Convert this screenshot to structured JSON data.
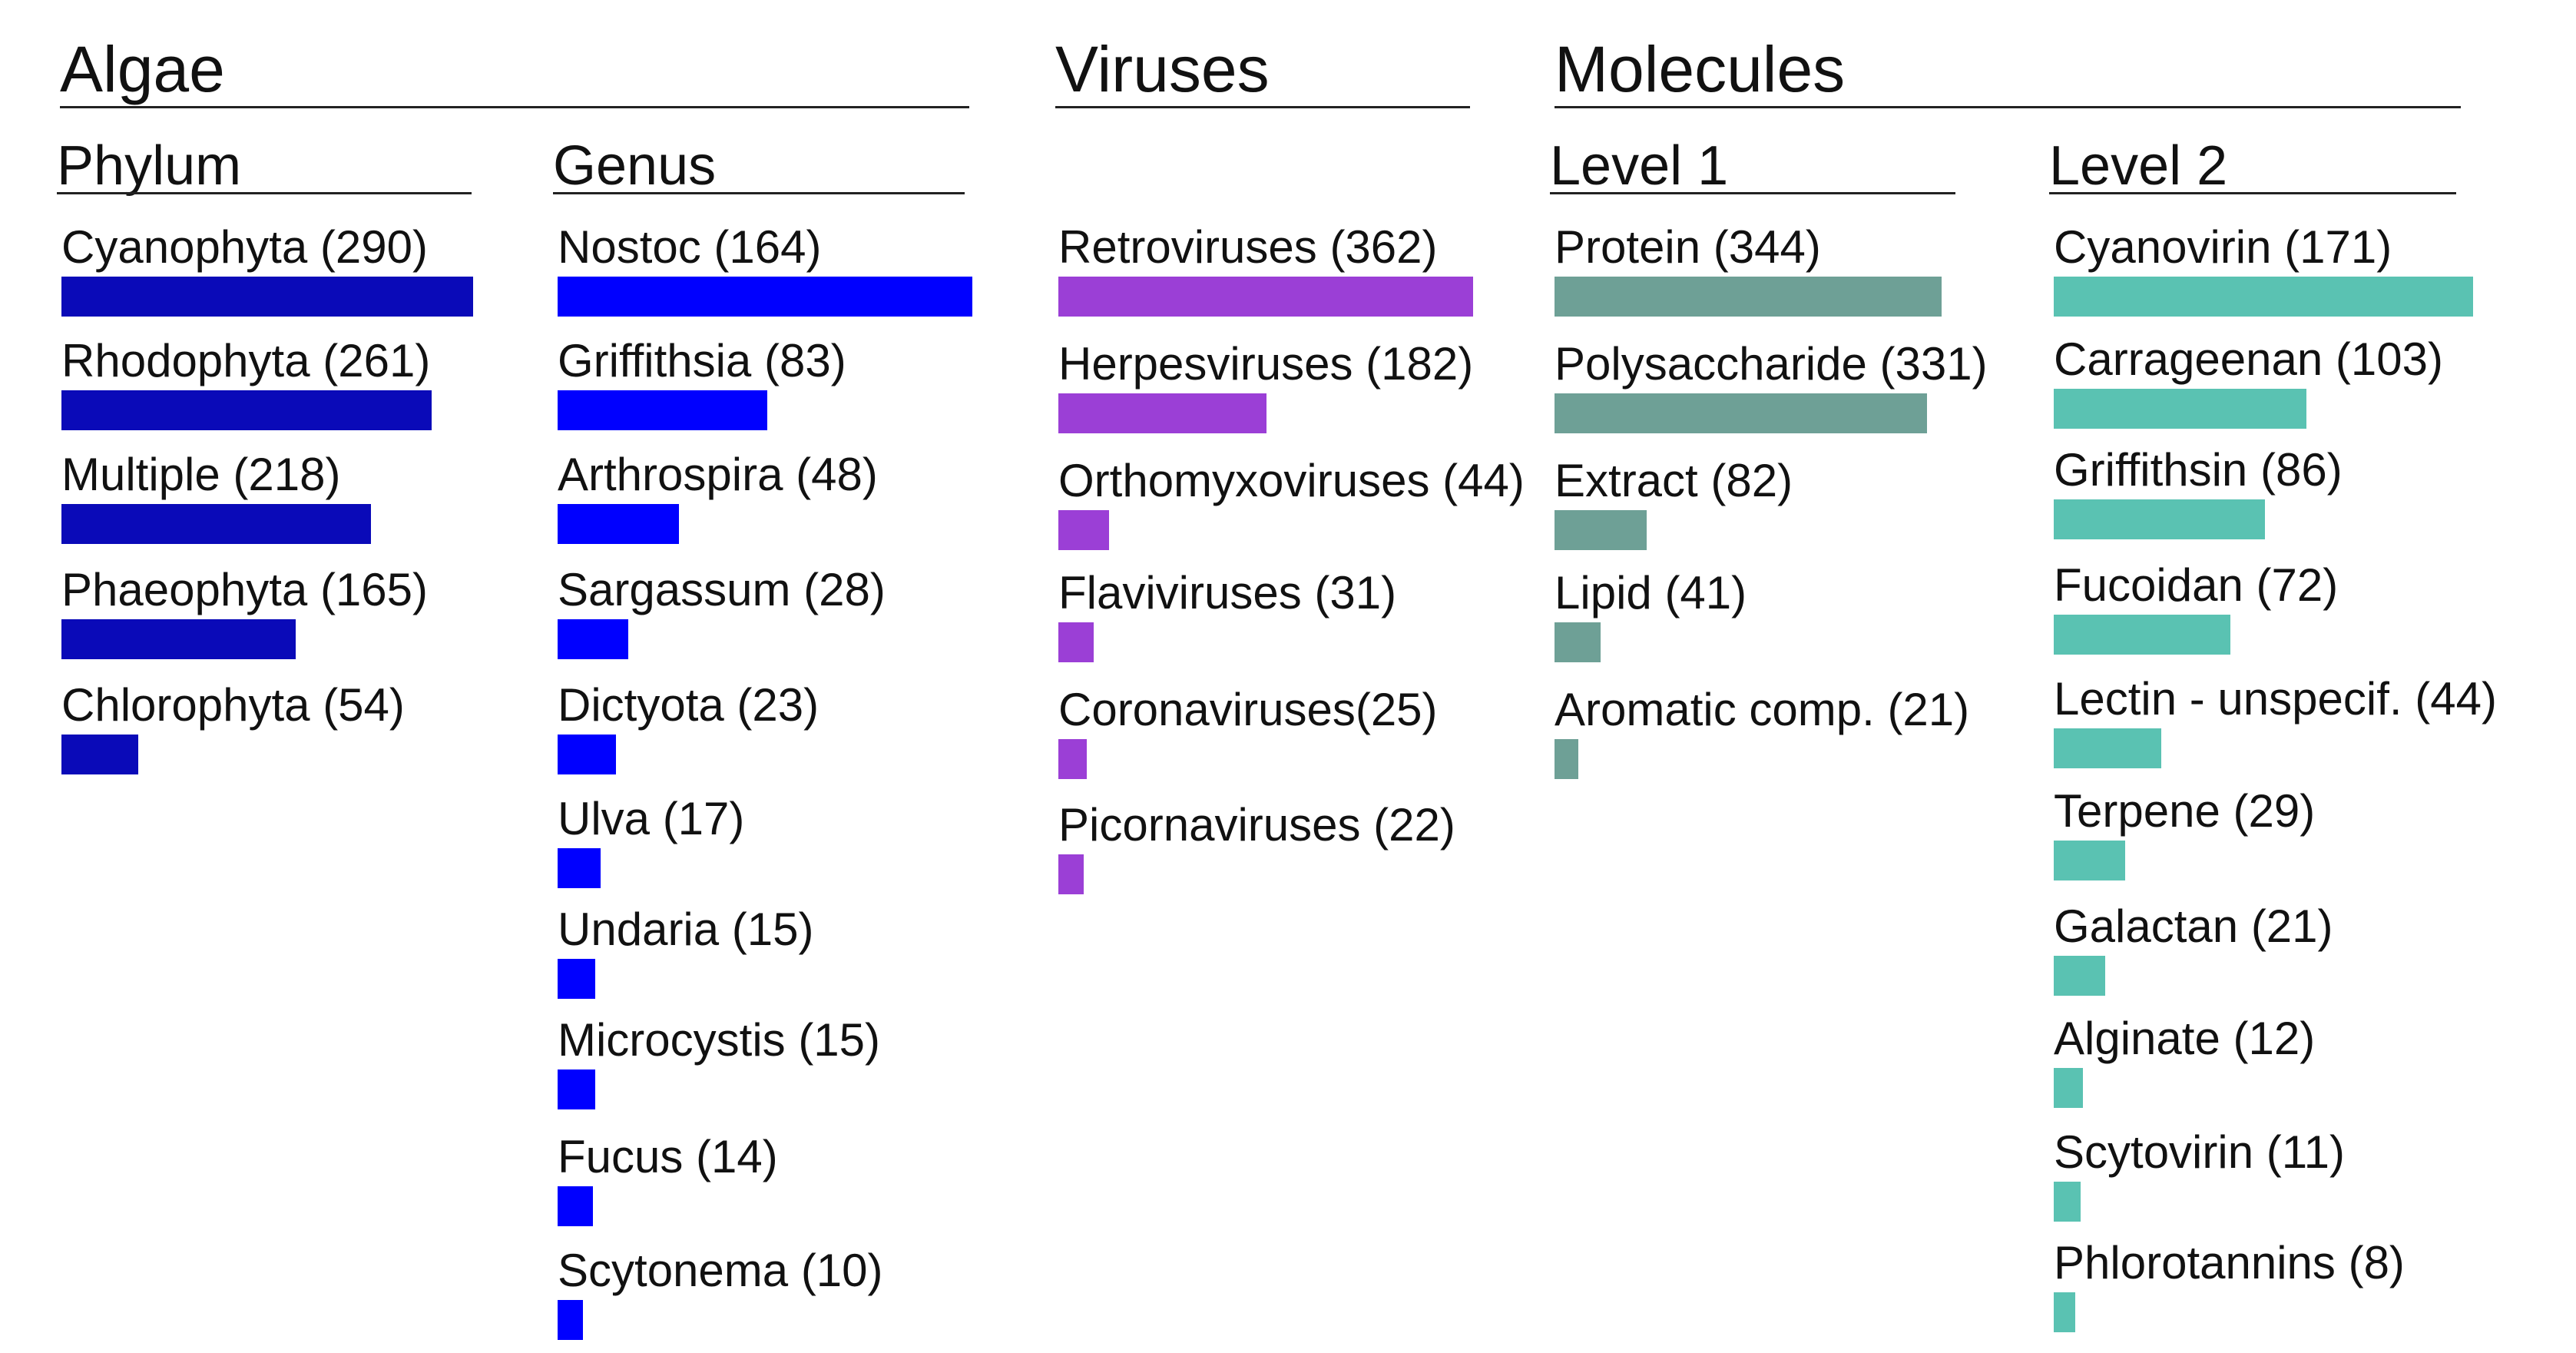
{
  "sections": {
    "algae": "Algae",
    "viruses": "Viruses",
    "molecules": "Molecules"
  },
  "colors": {
    "phylum": "#0a0ab8",
    "genus": "#0000ff",
    "viruses": "#9b3fd6",
    "level1": "#6ea096",
    "level2": "#5ac2b2"
  },
  "chart_data": [
    {
      "type": "bar",
      "orientation": "horizontal",
      "section": "Algae",
      "title": "Phylum",
      "color": "#0a0ab8",
      "categories": [
        "Cyanophyta",
        "Rhodophyta",
        "Multiple",
        "Phaeophyta",
        "Chlorophyta"
      ],
      "values": [
        290,
        261,
        218,
        165,
        54
      ],
      "labels": [
        "Cyanophyta (290)",
        "Rhodophyta (261)",
        "Multiple (218)",
        "Phaeophyta (165)",
        "Chlorophyta (54)"
      ]
    },
    {
      "type": "bar",
      "orientation": "horizontal",
      "section": "Algae",
      "title": "Genus",
      "color": "#0000ff",
      "categories": [
        "Nostoc",
        "Griffithsia",
        "Arthrospira",
        "Sargassum",
        "Dictyota",
        "Ulva",
        "Undaria",
        "Microcystis",
        "Fucus",
        "Scytonema"
      ],
      "values": [
        164,
        83,
        48,
        28,
        23,
        17,
        15,
        15,
        14,
        10
      ],
      "labels": [
        "Nostoc (164)",
        "Griffithsia (83)",
        "Arthrospira (48)",
        "Sargassum (28)",
        "Dictyota (23)",
        "Ulva (17)",
        "Undaria (15)",
        "Microcystis (15)",
        "Fucus (14)",
        "Scytonema (10)"
      ]
    },
    {
      "type": "bar",
      "orientation": "horizontal",
      "section": "Viruses",
      "title": "",
      "color": "#9b3fd6",
      "categories": [
        "Retroviruses",
        "Herpesviruses",
        "Orthomyxoviruses",
        "Flaviviruses",
        "Coronaviruses",
        "Picornaviruses"
      ],
      "values": [
        362,
        182,
        44,
        31,
        25,
        22
      ],
      "labels": [
        "Retroviruses (362)",
        "Herpesviruses (182)",
        "Orthomyxoviruses (44)",
        "Flaviviruses (31)",
        "Coronaviruses(25)",
        "Picornaviruses (22)"
      ]
    },
    {
      "type": "bar",
      "orientation": "horizontal",
      "section": "Molecules",
      "title": "Level 1",
      "color": "#6ea096",
      "categories": [
        "Protein",
        "Polysaccharide",
        "Extract",
        "Lipid",
        "Aromatic comp."
      ],
      "values": [
        344,
        331,
        82,
        41,
        21
      ],
      "labels": [
        "Protein (344)",
        "Polysaccharide (331)",
        "Extract (82)",
        "Lipid (41)",
        "Aromatic comp. (21)"
      ]
    },
    {
      "type": "bar",
      "orientation": "horizontal",
      "section": "Molecules",
      "title": "Level 2",
      "color": "#5ac2b2",
      "categories": [
        "Cyanovirin",
        "Carrageenan",
        "Griffithsin",
        "Fucoidan",
        "Lectin - unspecif.",
        "Terpene",
        "Galactan",
        "Alginate",
        "Scytovirin",
        "Phlorotannins"
      ],
      "values": [
        171,
        103,
        86,
        72,
        44,
        29,
        21,
        12,
        11,
        8
      ],
      "labels": [
        "Cyanovirin (171)",
        "Carrageenan (103)",
        "Griffithsin (86)",
        "Fucoidan (72)",
        "Lectin - unspecif. (44)",
        "Terpene (29)",
        "Galactan (21)",
        "Alginate (12)",
        "Scytovirin (11)",
        "Phlorotannins (8)"
      ]
    }
  ]
}
